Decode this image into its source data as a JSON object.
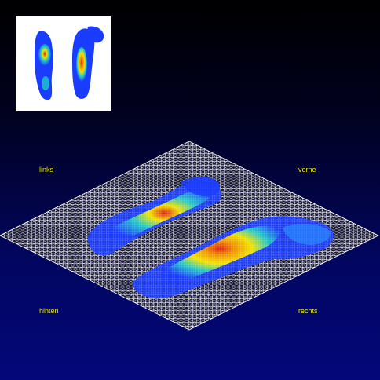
{
  "orientation_labels": {
    "top_left": "links",
    "top_right": "vorne",
    "bottom_left": "hinten",
    "bottom_right": "rechts"
  },
  "colors": {
    "background_top": "#000000",
    "background_bottom": "#03077a",
    "grid": "#ffffff",
    "label": "#e6e600",
    "pressure_low": "#1a3cff",
    "pressure_mid": "#22c8c8",
    "pressure_high": "#f2e200",
    "pressure_peak": "#e02010",
    "inset_background": "#ffffff"
  }
}
